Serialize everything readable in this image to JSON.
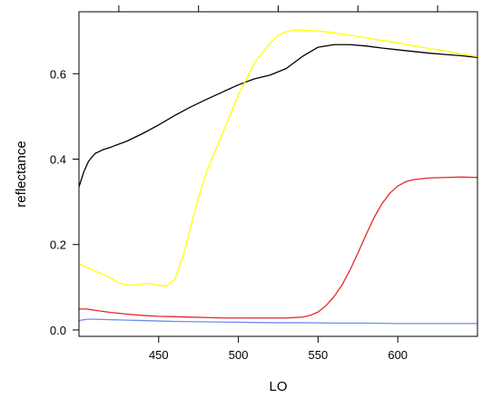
{
  "chart_data": {
    "type": "line",
    "title": "",
    "xlabel": "LO",
    "ylabel": "reflectance",
    "xlim": [
      400,
      650
    ],
    "ylim": [
      -0.015,
      0.745
    ],
    "x_ticks": [
      {
        "value": 450,
        "label": "450"
      },
      {
        "value": 500,
        "label": "500"
      },
      {
        "value": 550,
        "label": "550"
      },
      {
        "value": 600,
        "label": "600"
      }
    ],
    "y_ticks": [
      {
        "value": 0.0,
        "label": "0.0"
      },
      {
        "value": 0.2,
        "label": "0.2"
      },
      {
        "value": 0.4,
        "label": "0.4"
      },
      {
        "value": 0.6,
        "label": "0.6"
      }
    ],
    "top_ticks": [
      425,
      475,
      525,
      575,
      625
    ],
    "grid": false,
    "legend": "none",
    "series": [
      {
        "color": "#000000",
        "x": [
          400,
          403,
          406,
          410,
          415,
          420,
          430,
          440,
          450,
          460,
          470,
          480,
          490,
          500,
          510,
          520,
          530,
          540,
          550,
          560,
          570,
          580,
          590,
          600,
          610,
          620,
          630,
          640,
          650
        ],
        "y": [
          0.335,
          0.37,
          0.395,
          0.413,
          0.422,
          0.428,
          0.442,
          0.46,
          0.48,
          0.502,
          0.522,
          0.54,
          0.557,
          0.574,
          0.588,
          0.597,
          0.612,
          0.64,
          0.662,
          0.668,
          0.668,
          0.665,
          0.66,
          0.656,
          0.652,
          0.648,
          0.645,
          0.642,
          0.638
        ]
      },
      {
        "color": "#ffff00",
        "x": [
          400,
          410,
          420,
          425,
          430,
          435,
          440,
          445,
          450,
          455,
          460,
          465,
          470,
          475,
          480,
          490,
          500,
          510,
          520,
          525,
          530,
          535,
          540,
          545,
          550,
          560,
          570,
          580,
          590,
          600,
          610,
          620,
          630,
          640,
          650
        ],
        "y": [
          0.155,
          0.138,
          0.122,
          0.11,
          0.105,
          0.105,
          0.108,
          0.109,
          0.104,
          0.103,
          0.118,
          0.17,
          0.24,
          0.31,
          0.37,
          0.46,
          0.55,
          0.625,
          0.672,
          0.69,
          0.698,
          0.702,
          0.702,
          0.701,
          0.7,
          0.696,
          0.69,
          0.684,
          0.678,
          0.672,
          0.665,
          0.659,
          0.653,
          0.646,
          0.64
        ]
      },
      {
        "color": "#e8262a",
        "x": [
          400,
          405,
          410,
          420,
          430,
          440,
          450,
          460,
          470,
          480,
          490,
          500,
          510,
          520,
          530,
          540,
          545,
          550,
          555,
          560,
          565,
          570,
          575,
          580,
          585,
          590,
          595,
          600,
          605,
          610,
          620,
          630,
          640,
          650
        ],
        "y": [
          0.049,
          0.049,
          0.046,
          0.041,
          0.037,
          0.034,
          0.032,
          0.031,
          0.03,
          0.029,
          0.028,
          0.028,
          0.028,
          0.028,
          0.028,
          0.03,
          0.034,
          0.042,
          0.057,
          0.078,
          0.105,
          0.14,
          0.18,
          0.222,
          0.262,
          0.295,
          0.32,
          0.337,
          0.347,
          0.352,
          0.356,
          0.357,
          0.358,
          0.357
        ]
      },
      {
        "color": "#6d8ef0",
        "x": [
          400,
          405,
          410,
          420,
          430,
          440,
          450,
          460,
          480,
          500,
          520,
          540,
          560,
          580,
          600,
          620,
          650
        ],
        "y": [
          0.022,
          0.025,
          0.025,
          0.024,
          0.023,
          0.022,
          0.021,
          0.02,
          0.019,
          0.018,
          0.017,
          0.017,
          0.016,
          0.016,
          0.015,
          0.015,
          0.015
        ]
      }
    ]
  }
}
